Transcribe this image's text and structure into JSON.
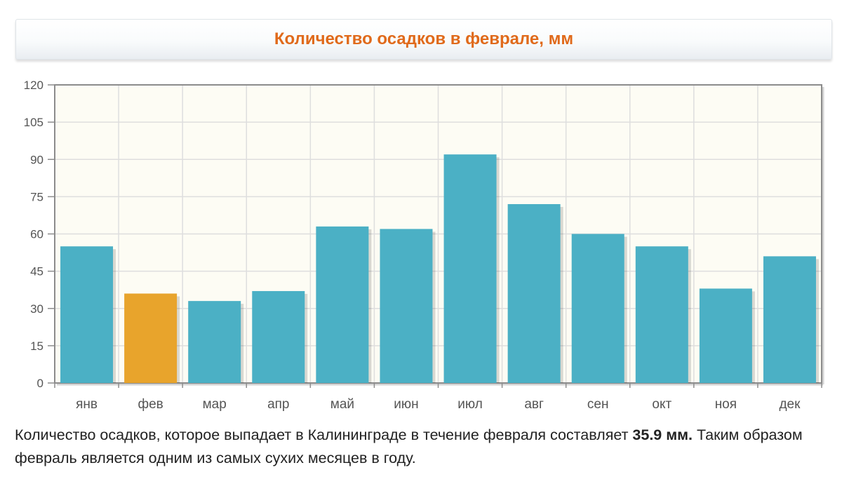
{
  "header": {
    "title": "Количество осадков в феврале, мм"
  },
  "chart_data": {
    "type": "bar",
    "title": "Количество осадков в феврале, мм",
    "categories": [
      "янв",
      "фев",
      "мар",
      "апр",
      "май",
      "июн",
      "июл",
      "авг",
      "сен",
      "окт",
      "ноя",
      "дек"
    ],
    "values": [
      55,
      36,
      33,
      37,
      63,
      62,
      92,
      72,
      60,
      55,
      38,
      51
    ],
    "highlight_index": 1,
    "ylim": [
      0,
      120
    ],
    "yticks": [
      0,
      15,
      30,
      45,
      60,
      75,
      90,
      105,
      120
    ],
    "grid": true,
    "colors": {
      "bar": "#4bb0c5",
      "highlight": "#e8a42c",
      "plot_bg": "#fdfcf4",
      "grid": "#dedede",
      "axis": "#8c8c8c",
      "label": "#555555"
    }
  },
  "description": {
    "before": "Количество осадков, которое выпадает в Калининграде в течение февраля составляет ",
    "value": "35.9 мм.",
    "after": " Таким образом февраль является одним из самых сухих месяцев в году."
  }
}
